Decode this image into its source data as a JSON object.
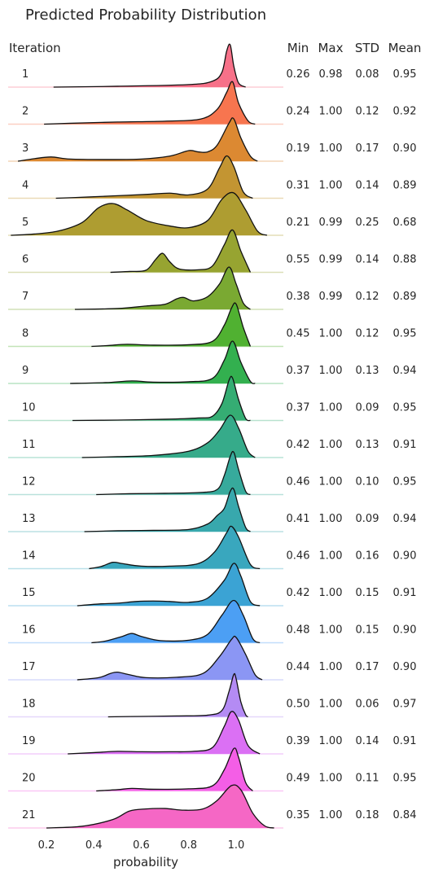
{
  "chart_data": {
    "type": "ridgeline",
    "title": "Predicted Probability Distribution",
    "xlabel": "probability",
    "ylabel": "Iteration",
    "xlim": [
      0.05,
      1.21
    ],
    "x_ticks": [
      "0.2",
      "0.4",
      "0.6",
      "0.8",
      "1.0"
    ],
    "x_tick_values": [
      0.2,
      0.4,
      0.6,
      0.8,
      1.0
    ],
    "grid": false,
    "stat_headers": [
      "Min",
      "Max",
      "STD",
      "Mean"
    ],
    "series": [
      {
        "iteration": "1",
        "color": "#f77189",
        "min": "0.26",
        "max": "0.98",
        "std": "0.08",
        "mean": "0.95",
        "density": [
          [
            0.23,
            0
          ],
          [
            0.5,
            0.02
          ],
          [
            0.8,
            0.06
          ],
          [
            0.9,
            0.14
          ],
          [
            0.94,
            0.35
          ],
          [
            0.96,
            0.85
          ],
          [
            0.975,
            1.0
          ],
          [
            0.99,
            0.5
          ],
          [
            1.01,
            0.1
          ],
          [
            1.04,
            0
          ]
        ]
      },
      {
        "iteration": "2",
        "color": "#f7754f",
        "min": "0.24",
        "max": "1.00",
        "std": "0.12",
        "mean": "0.92",
        "density": [
          [
            0.19,
            0
          ],
          [
            0.3,
            0.02
          ],
          [
            0.5,
            0.05
          ],
          [
            0.7,
            0.07
          ],
          [
            0.85,
            0.12
          ],
          [
            0.92,
            0.35
          ],
          [
            0.96,
            0.75
          ],
          [
            0.985,
            1.0
          ],
          [
            1.01,
            0.5
          ],
          [
            1.05,
            0.08
          ],
          [
            1.08,
            0
          ]
        ]
      },
      {
        "iteration": "3",
        "color": "#dc8932",
        "min": "0.19",
        "max": "1.00",
        "std": "0.17",
        "mean": "0.90",
        "density": [
          [
            0.08,
            0
          ],
          [
            0.15,
            0.06
          ],
          [
            0.22,
            0.1
          ],
          [
            0.3,
            0.05
          ],
          [
            0.45,
            0.04
          ],
          [
            0.6,
            0.05
          ],
          [
            0.72,
            0.12
          ],
          [
            0.8,
            0.25
          ],
          [
            0.84,
            0.22
          ],
          [
            0.88,
            0.22
          ],
          [
            0.92,
            0.38
          ],
          [
            0.97,
            0.9
          ],
          [
            0.99,
            1.0
          ],
          [
            1.02,
            0.55
          ],
          [
            1.06,
            0.12
          ],
          [
            1.09,
            0
          ]
        ]
      },
      {
        "iteration": "4",
        "color": "#c39532",
        "min": "0.31",
        "max": "1.00",
        "std": "0.14",
        "mean": "0.89",
        "density": [
          [
            0.24,
            0
          ],
          [
            0.38,
            0.03
          ],
          [
            0.5,
            0.06
          ],
          [
            0.62,
            0.09
          ],
          [
            0.72,
            0.12
          ],
          [
            0.8,
            0.08
          ],
          [
            0.88,
            0.22
          ],
          [
            0.93,
            0.72
          ],
          [
            0.96,
            1.0
          ],
          [
            0.99,
            0.75
          ],
          [
            1.03,
            0.15
          ],
          [
            1.07,
            0
          ]
        ]
      },
      {
        "iteration": "5",
        "color": "#ae9d31",
        "min": "0.21",
        "max": "0.99",
        "std": "0.25",
        "mean": "0.68",
        "density": [
          [
            0.05,
            0
          ],
          [
            0.15,
            0.03
          ],
          [
            0.25,
            0.1
          ],
          [
            0.35,
            0.3
          ],
          [
            0.42,
            0.65
          ],
          [
            0.48,
            0.75
          ],
          [
            0.54,
            0.6
          ],
          [
            0.62,
            0.35
          ],
          [
            0.72,
            0.22
          ],
          [
            0.8,
            0.18
          ],
          [
            0.88,
            0.35
          ],
          [
            0.94,
            0.85
          ],
          [
            0.99,
            1.0
          ],
          [
            1.04,
            0.6
          ],
          [
            1.09,
            0.1
          ],
          [
            1.13,
            0
          ]
        ]
      },
      {
        "iteration": "6",
        "color": "#97a431",
        "min": "0.55",
        "max": "0.99",
        "std": "0.14",
        "mean": "0.88",
        "density": [
          [
            0.47,
            0
          ],
          [
            0.55,
            0.02
          ],
          [
            0.62,
            0.05
          ],
          [
            0.66,
            0.3
          ],
          [
            0.69,
            0.45
          ],
          [
            0.72,
            0.25
          ],
          [
            0.76,
            0.08
          ],
          [
            0.84,
            0.06
          ],
          [
            0.9,
            0.15
          ],
          [
            0.95,
            0.65
          ],
          [
            0.985,
            1.0
          ],
          [
            1.02,
            0.5
          ],
          [
            1.06,
            0
          ]
        ]
      },
      {
        "iteration": "7",
        "color": "#7aa932",
        "min": "0.38",
        "max": "0.99",
        "std": "0.12",
        "mean": "0.89",
        "density": [
          [
            0.32,
            0
          ],
          [
            0.5,
            0.02
          ],
          [
            0.62,
            0.08
          ],
          [
            0.7,
            0.12
          ],
          [
            0.75,
            0.25
          ],
          [
            0.78,
            0.28
          ],
          [
            0.82,
            0.2
          ],
          [
            0.88,
            0.3
          ],
          [
            0.93,
            0.6
          ],
          [
            0.97,
            1.0
          ],
          [
            1.0,
            0.6
          ],
          [
            1.03,
            0.15
          ],
          [
            1.06,
            0
          ]
        ]
      },
      {
        "iteration": "8",
        "color": "#50b131",
        "min": "0.45",
        "max": "1.00",
        "std": "0.12",
        "mean": "0.95",
        "density": [
          [
            0.39,
            0
          ],
          [
            0.46,
            0.02
          ],
          [
            0.54,
            0.05
          ],
          [
            0.65,
            0.03
          ],
          [
            0.8,
            0.04
          ],
          [
            0.9,
            0.12
          ],
          [
            0.95,
            0.5
          ],
          [
            0.98,
            0.9
          ],
          [
            1.0,
            1.0
          ],
          [
            1.03,
            0.45
          ],
          [
            1.06,
            0
          ]
        ]
      },
      {
        "iteration": "9",
        "color": "#33b04f",
        "min": "0.37",
        "max": "1.00",
        "std": "0.13",
        "mean": "0.94",
        "density": [
          [
            0.3,
            0
          ],
          [
            0.45,
            0.02
          ],
          [
            0.56,
            0.06
          ],
          [
            0.65,
            0.03
          ],
          [
            0.8,
            0.04
          ],
          [
            0.9,
            0.12
          ],
          [
            0.95,
            0.55
          ],
          [
            0.985,
            1.0
          ],
          [
            1.02,
            0.5
          ],
          [
            1.06,
            0.05
          ],
          [
            1.08,
            0
          ]
        ]
      },
      {
        "iteration": "10",
        "color": "#35ad73",
        "min": "0.37",
        "max": "1.00",
        "std": "0.09",
        "mean": "0.95",
        "density": [
          [
            0.31,
            0
          ],
          [
            0.5,
            0.01
          ],
          [
            0.7,
            0.03
          ],
          [
            0.84,
            0.06
          ],
          [
            0.9,
            0.1
          ],
          [
            0.94,
            0.4
          ],
          [
            0.97,
            0.95
          ],
          [
            0.985,
            1.0
          ],
          [
            1.01,
            0.5
          ],
          [
            1.04,
            0.05
          ],
          [
            1.06,
            0
          ]
        ]
      },
      {
        "iteration": "11",
        "color": "#36ab8a",
        "min": "0.42",
        "max": "1.00",
        "std": "0.13",
        "mean": "0.91",
        "density": [
          [
            0.35,
            0
          ],
          [
            0.5,
            0.02
          ],
          [
            0.65,
            0.05
          ],
          [
            0.8,
            0.15
          ],
          [
            0.88,
            0.35
          ],
          [
            0.93,
            0.65
          ],
          [
            0.975,
            1.0
          ],
          [
            1.01,
            0.7
          ],
          [
            1.05,
            0.15
          ],
          [
            1.08,
            0
          ]
        ]
      },
      {
        "iteration": "12",
        "color": "#37aa9c",
        "min": "0.46",
        "max": "1.00",
        "std": "0.10",
        "mean": "0.95",
        "density": [
          [
            0.41,
            0
          ],
          [
            0.55,
            0.02
          ],
          [
            0.7,
            0.03
          ],
          [
            0.85,
            0.05
          ],
          [
            0.92,
            0.12
          ],
          [
            0.95,
            0.45
          ],
          [
            0.975,
            0.9
          ],
          [
            0.99,
            1.0
          ],
          [
            1.01,
            0.6
          ],
          [
            1.04,
            0.08
          ],
          [
            1.06,
            0
          ]
        ]
      },
      {
        "iteration": "13",
        "color": "#38a8ad",
        "min": "0.41",
        "max": "1.00",
        "std": "0.09",
        "mean": "0.94",
        "density": [
          [
            0.36,
            0
          ],
          [
            0.5,
            0.02
          ],
          [
            0.65,
            0.03
          ],
          [
            0.8,
            0.05
          ],
          [
            0.88,
            0.18
          ],
          [
            0.92,
            0.38
          ],
          [
            0.95,
            0.55
          ],
          [
            0.975,
            0.95
          ],
          [
            0.99,
            1.0
          ],
          [
            1.01,
            0.6
          ],
          [
            1.04,
            0.1
          ],
          [
            1.06,
            0
          ]
        ]
      },
      {
        "iteration": "14",
        "color": "#39a7be",
        "min": "0.46",
        "max": "1.00",
        "std": "0.16",
        "mean": "0.90",
        "density": [
          [
            0.38,
            0
          ],
          [
            0.43,
            0.05
          ],
          [
            0.48,
            0.15
          ],
          [
            0.52,
            0.12
          ],
          [
            0.6,
            0.06
          ],
          [
            0.72,
            0.06
          ],
          [
            0.84,
            0.12
          ],
          [
            0.91,
            0.4
          ],
          [
            0.96,
            0.85
          ],
          [
            0.98,
            1.0
          ],
          [
            1.01,
            0.75
          ],
          [
            1.06,
            0.1
          ],
          [
            1.1,
            0
          ]
        ]
      },
      {
        "iteration": "15",
        "color": "#3ba3d4",
        "min": "0.42",
        "max": "1.00",
        "std": "0.15",
        "mean": "0.91",
        "density": [
          [
            0.33,
            0
          ],
          [
            0.42,
            0.04
          ],
          [
            0.5,
            0.06
          ],
          [
            0.58,
            0.1
          ],
          [
            0.65,
            0.11
          ],
          [
            0.72,
            0.1
          ],
          [
            0.8,
            0.08
          ],
          [
            0.88,
            0.18
          ],
          [
            0.95,
            0.6
          ],
          [
            0.99,
            1.0
          ],
          [
            1.02,
            0.7
          ],
          [
            1.06,
            0.1
          ],
          [
            1.1,
            0
          ]
        ]
      },
      {
        "iteration": "16",
        "color": "#4c9ff4",
        "min": "0.48",
        "max": "1.00",
        "std": "0.15",
        "mean": "0.90",
        "density": [
          [
            0.39,
            0
          ],
          [
            0.45,
            0.04
          ],
          [
            0.52,
            0.15
          ],
          [
            0.56,
            0.22
          ],
          [
            0.6,
            0.15
          ],
          [
            0.68,
            0.05
          ],
          [
            0.8,
            0.06
          ],
          [
            0.88,
            0.2
          ],
          [
            0.94,
            0.65
          ],
          [
            0.99,
            1.0
          ],
          [
            1.03,
            0.65
          ],
          [
            1.07,
            0.1
          ],
          [
            1.1,
            0
          ]
        ]
      },
      {
        "iteration": "17",
        "color": "#8b96f4",
        "min": "0.44",
        "max": "1.00",
        "std": "0.17",
        "mean": "0.90",
        "density": [
          [
            0.33,
            0
          ],
          [
            0.42,
            0.05
          ],
          [
            0.47,
            0.15
          ],
          [
            0.5,
            0.18
          ],
          [
            0.55,
            0.12
          ],
          [
            0.62,
            0.05
          ],
          [
            0.75,
            0.06
          ],
          [
            0.86,
            0.15
          ],
          [
            0.93,
            0.55
          ],
          [
            0.98,
            0.95
          ],
          [
            1.0,
            1.0
          ],
          [
            1.04,
            0.6
          ],
          [
            1.08,
            0.12
          ],
          [
            1.11,
            0
          ]
        ]
      },
      {
        "iteration": "18",
        "color": "#b48bf4",
        "min": "0.50",
        "max": "1.00",
        "std": "0.06",
        "mean": "0.97",
        "density": [
          [
            0.46,
            0
          ],
          [
            0.6,
            0.01
          ],
          [
            0.75,
            0.02
          ],
          [
            0.88,
            0.04
          ],
          [
            0.94,
            0.15
          ],
          [
            0.97,
            0.6
          ],
          [
            0.99,
            1.0
          ],
          [
            1.0,
            0.9
          ],
          [
            1.02,
            0.35
          ],
          [
            1.04,
            0.05
          ],
          [
            1.05,
            0
          ]
        ]
      },
      {
        "iteration": "19",
        "color": "#db70f4",
        "min": "0.39",
        "max": "1.00",
        "std": "0.14",
        "mean": "0.91",
        "density": [
          [
            0.29,
            0
          ],
          [
            0.4,
            0.03
          ],
          [
            0.5,
            0.06
          ],
          [
            0.6,
            0.05
          ],
          [
            0.72,
            0.05
          ],
          [
            0.82,
            0.06
          ],
          [
            0.9,
            0.15
          ],
          [
            0.95,
            0.65
          ],
          [
            0.98,
            1.0
          ],
          [
            1.01,
            0.8
          ],
          [
            1.05,
            0.2
          ],
          [
            1.1,
            0
          ]
        ]
      },
      {
        "iteration": "20",
        "color": "#f45ee6",
        "min": "0.49",
        "max": "1.00",
        "std": "0.11",
        "mean": "0.95",
        "density": [
          [
            0.41,
            0
          ],
          [
            0.5,
            0.03
          ],
          [
            0.56,
            0.06
          ],
          [
            0.65,
            0.04
          ],
          [
            0.8,
            0.05
          ],
          [
            0.9,
            0.12
          ],
          [
            0.95,
            0.5
          ],
          [
            0.99,
            1.0
          ],
          [
            1.01,
            0.8
          ],
          [
            1.04,
            0.2
          ],
          [
            1.07,
            0
          ]
        ]
      },
      {
        "iteration": "21",
        "color": "#f567c5",
        "min": "0.35",
        "max": "1.00",
        "std": "0.18",
        "mean": "0.84",
        "density": [
          [
            0.2,
            0
          ],
          [
            0.35,
            0.04
          ],
          [
            0.48,
            0.2
          ],
          [
            0.55,
            0.4
          ],
          [
            0.62,
            0.45
          ],
          [
            0.7,
            0.46
          ],
          [
            0.78,
            0.42
          ],
          [
            0.86,
            0.45
          ],
          [
            0.92,
            0.65
          ],
          [
            0.98,
            1.0
          ],
          [
            1.02,
            0.9
          ],
          [
            1.07,
            0.35
          ],
          [
            1.12,
            0.05
          ],
          [
            1.16,
            0
          ]
        ]
      }
    ]
  }
}
